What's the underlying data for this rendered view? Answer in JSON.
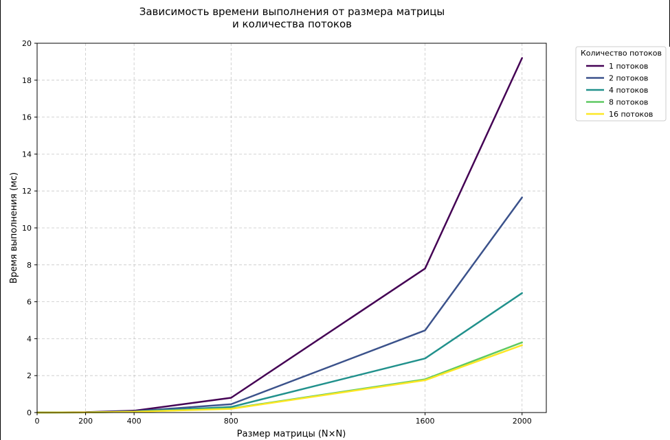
{
  "chart_data": {
    "type": "line",
    "title_lines": [
      "Зависимость времени выполнения от размера матрицы",
      "и количества потоков"
    ],
    "xlabel": "Размер матрицы (N×N)",
    "ylabel": "Время выполнения (мс)",
    "xlim": [
      0,
      2100
    ],
    "ylim": [
      0,
      20
    ],
    "x_ticks": [
      0,
      200,
      400,
      800,
      1600,
      2000
    ],
    "y_ticks": [
      0,
      2,
      4,
      6,
      8,
      10,
      12,
      14,
      16,
      18,
      20
    ],
    "grid": true,
    "legend": {
      "title": "Количество потоков",
      "placement": "outside-top-right"
    },
    "x": [
      0,
      200,
      400,
      800,
      1600,
      2000
    ],
    "series": [
      {
        "name": "1 потоков",
        "color": "#440154",
        "values": [
          0.0,
          0.02,
          0.1,
          0.8,
          7.8,
          19.2
        ]
      },
      {
        "name": "2 потоков",
        "color": "#3b528b",
        "values": [
          0.0,
          0.01,
          0.07,
          0.45,
          4.45,
          11.65
        ]
      },
      {
        "name": "4 потоков",
        "color": "#21918c",
        "values": [
          0.0,
          0.01,
          0.05,
          0.3,
          2.93,
          6.47
        ]
      },
      {
        "name": "8 потоков",
        "color": "#5ec962",
        "values": [
          0.0,
          0.01,
          0.04,
          0.22,
          1.8,
          3.8
        ]
      },
      {
        "name": "16 потоков",
        "color": "#fde725",
        "values": [
          0.0,
          0.01,
          0.04,
          0.2,
          1.75,
          3.65
        ]
      }
    ]
  }
}
